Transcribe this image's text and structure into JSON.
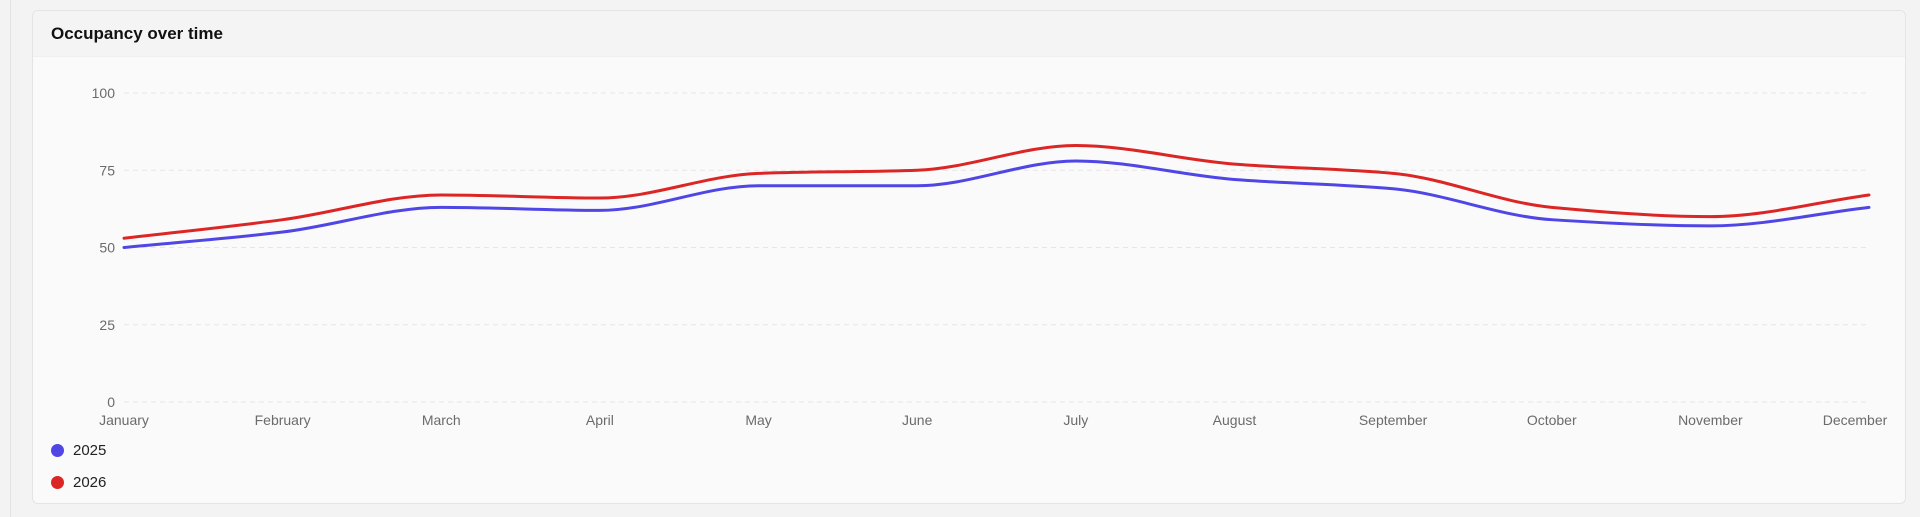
{
  "card": {
    "title": "Occupancy over time"
  },
  "chart_data": {
    "type": "line",
    "title": "Occupancy over time",
    "categories": [
      "January",
      "February",
      "March",
      "April",
      "May",
      "June",
      "July",
      "August",
      "September",
      "October",
      "November",
      "December"
    ],
    "series": [
      {
        "name": "2025",
        "color": "#4f46e5",
        "values": [
          50,
          55,
          63,
          62,
          70,
          70,
          78,
          72,
          69,
          59,
          57,
          63
        ]
      },
      {
        "name": "2026",
        "color": "#dc2626",
        "values": [
          53,
          59,
          67,
          66,
          74,
          75,
          83,
          77,
          74,
          63,
          60,
          67
        ]
      }
    ],
    "yticks": [
      "0",
      "25",
      "50",
      "75",
      "100"
    ],
    "ylim": [
      0,
      100
    ],
    "grid": true,
    "legend_position": "bottom-left"
  },
  "legend": [
    {
      "label": "2025",
      "color": "#4f46e5"
    },
    {
      "label": "2026",
      "color": "#dc2626"
    }
  ]
}
